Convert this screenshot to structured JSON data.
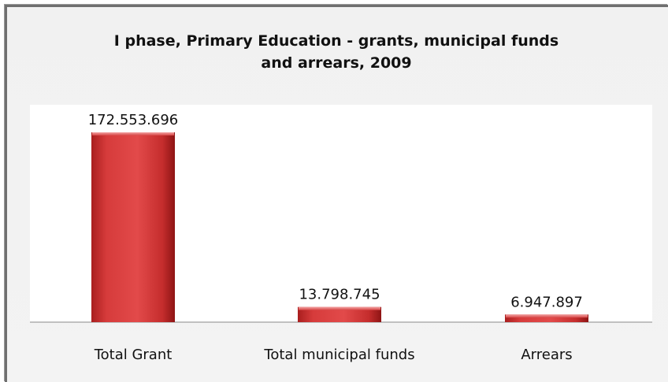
{
  "chart_data": {
    "type": "bar",
    "title": "I phase, Primary Education - grants, municipal funds and arrears, 2009",
    "title_lines": [
      "I phase, Primary Education - grants, municipal funds",
      "and arrears, 2009"
    ],
    "categories": [
      "Total Grant",
      "Total municipal funds",
      "Arrears"
    ],
    "values": [
      172553696,
      13798745,
      6947897
    ],
    "value_labels": [
      "172.553.696",
      "13.798.745",
      "6.947.897"
    ],
    "xlabel": "",
    "ylabel": "",
    "ylim": [
      0,
      172553696
    ],
    "grid": false,
    "legend": "none",
    "colors": {
      "bar": "#d63b3b",
      "bar_dark": "#8e1414",
      "bar_top": "#f08a8a",
      "plot_bg": "#ffffff",
      "chart_bg": "#f2f2f2"
    }
  }
}
